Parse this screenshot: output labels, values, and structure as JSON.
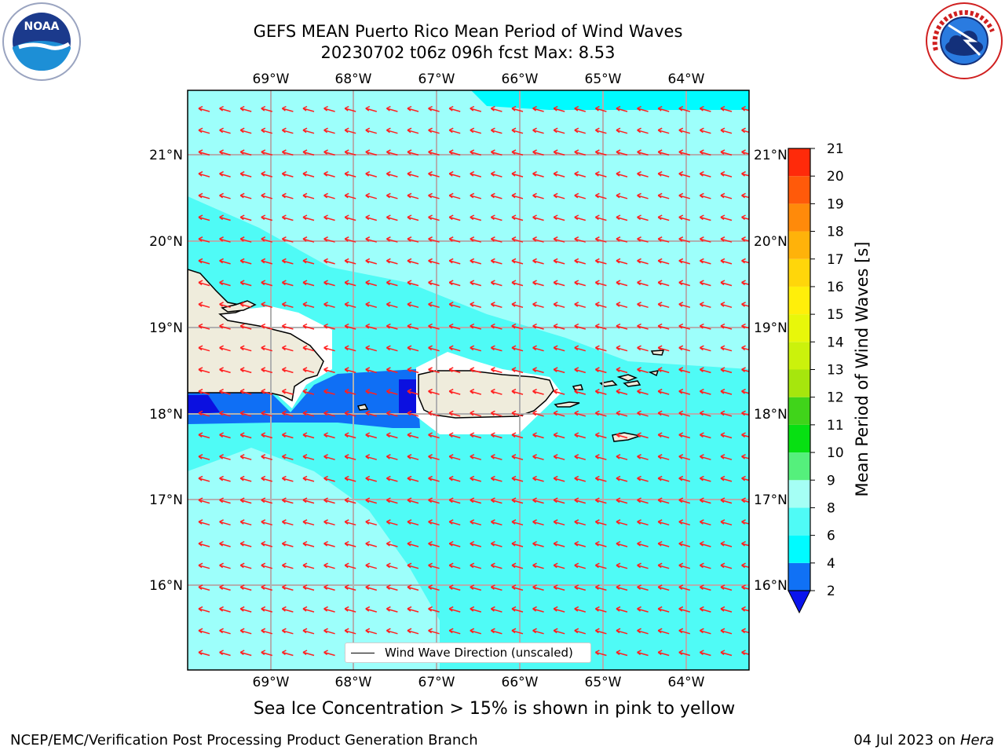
{
  "title": {
    "line1": "GEFS MEAN Puerto Rico Mean Period of Wind Waves",
    "line2": "20230702 t06z 096h fcst   Max: 8.53"
  },
  "logos": {
    "left": {
      "icon": "noaa-logo",
      "text": "NOAA"
    },
    "right": {
      "icon": "nws-logo",
      "text": "NATIONAL WEATHER SERVICE"
    }
  },
  "map": {
    "lon_labels": [
      "69°W",
      "68°W",
      "67°W",
      "66°W",
      "65°W",
      "64°W"
    ],
    "lat_labels": [
      "21°N",
      "20°N",
      "19°N",
      "18°N",
      "17°N",
      "16°N"
    ],
    "legend_label": "Wind Wave Direction (unscaled)",
    "colors": {
      "land": "#efecdc",
      "ocean_8_9": "#9dfffb",
      "ocean_6_8": "#4ffbf6",
      "ocean_4_6": "#00fbff",
      "ocean_2_4": "#0f6ff5",
      "ocean_lt2": "#0b10e0",
      "arrow": "#ff2020",
      "grid": "#b0b0b0"
    }
  },
  "colorbar": {
    "title": "Mean Period of Wind Waves [s]",
    "ticks": [
      "2",
      "4",
      "6",
      "8",
      "9",
      "10",
      "11",
      "12",
      "13",
      "14",
      "15",
      "16",
      "17",
      "18",
      "19",
      "20",
      "21"
    ],
    "colors": [
      "#0a14ec",
      "#1071f5",
      "#00fbff",
      "#4ffbf6",
      "#a5fff5",
      "#55f07c",
      "#07e012",
      "#40d41a",
      "#a6e60d",
      "#cbf20c",
      "#e8f70a",
      "#ffef0a",
      "#ffd60a",
      "#ffb20a",
      "#ff8a0a",
      "#ff5a0a",
      "#ff2a0a",
      "#f2000a"
    ]
  },
  "sea_ice_note": "Sea Ice Concentration > 15% is shown in pink to yellow",
  "footer": {
    "left": "NCEP/EMC/Verification Post Processing Product Generation Branch",
    "right_date": "04 Jul 2023 on ",
    "right_host": "Hera"
  }
}
